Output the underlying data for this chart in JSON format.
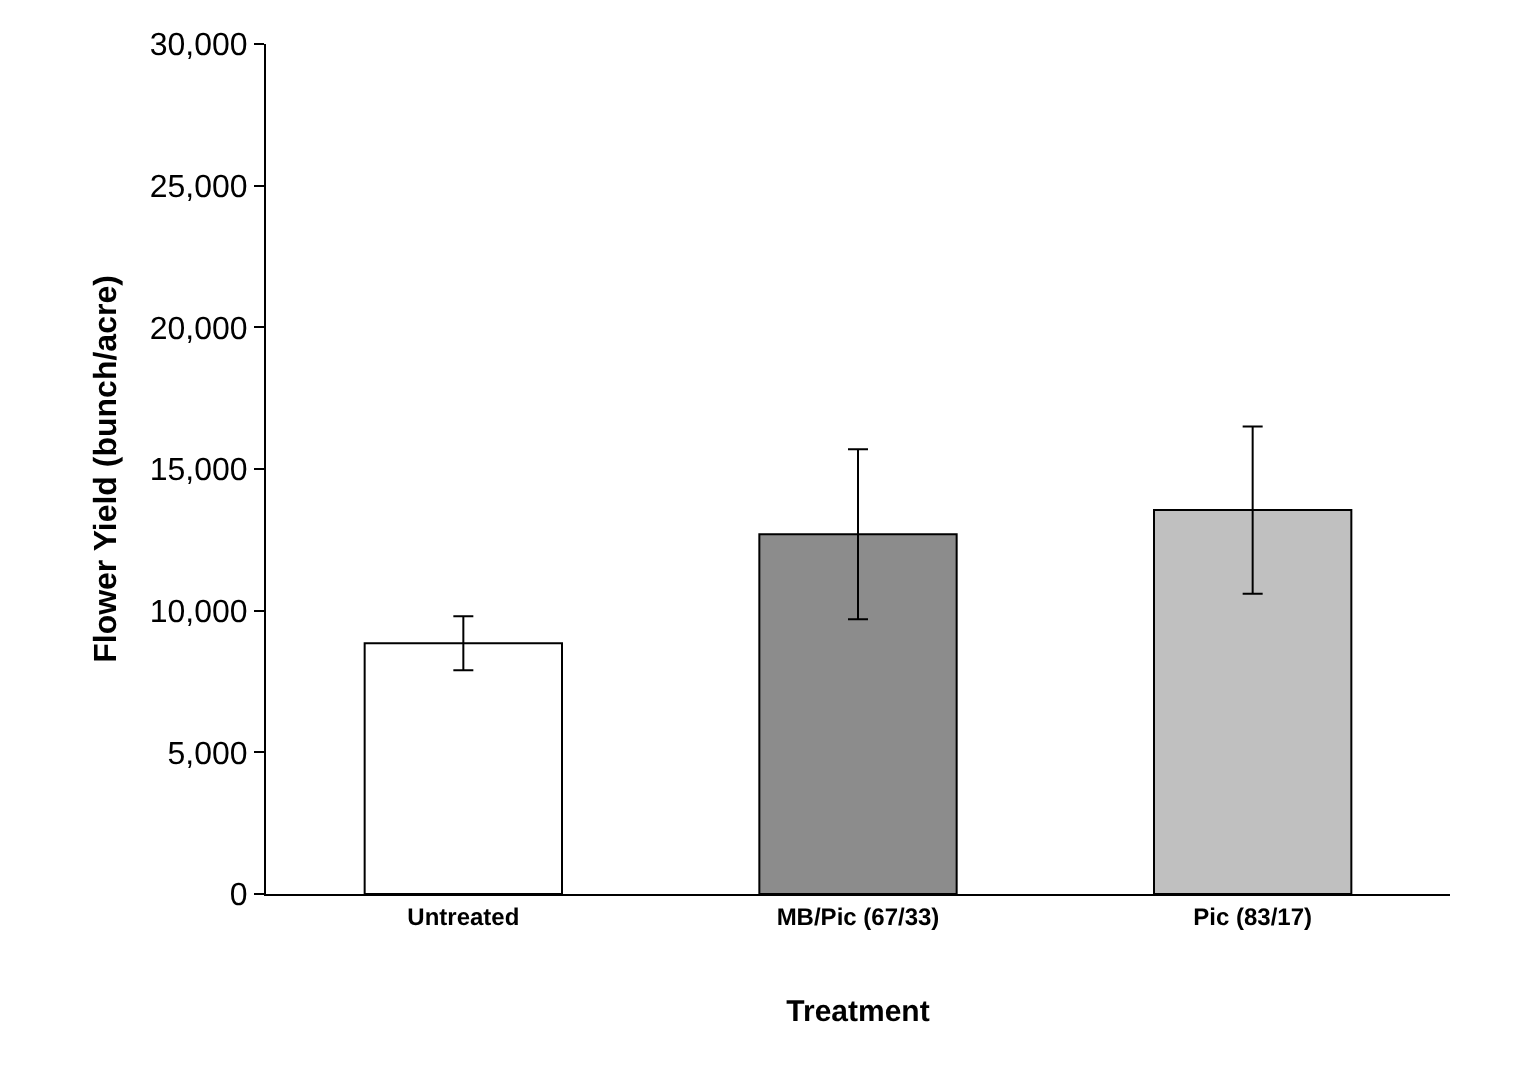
{
  "chart_data": {
    "type": "bar",
    "xlabel": "Treatment",
    "ylabel": "Flower Yield (bunch/acre)",
    "categories": [
      "Untreated",
      "MB/Pic (67/33)",
      "Pic (83/17)"
    ],
    "values": [
      8850,
      12700,
      13550
    ],
    "errors": [
      950,
      3000,
      2950
    ],
    "colors": [
      "#ffffff",
      "#8c8c8c",
      "#c0c0c0"
    ],
    "ylim": [
      0,
      30000
    ],
    "yticks": [
      {
        "value": 0,
        "label": "0"
      },
      {
        "value": 5000,
        "label": "5,000"
      },
      {
        "value": 10000,
        "label": "10,000"
      },
      {
        "value": 15000,
        "label": "15,000"
      },
      {
        "value": 20000,
        "label": "20,000"
      },
      {
        "value": 25000,
        "label": "25,000"
      },
      {
        "value": 30000,
        "label": "30,000"
      }
    ],
    "grid": false
  }
}
